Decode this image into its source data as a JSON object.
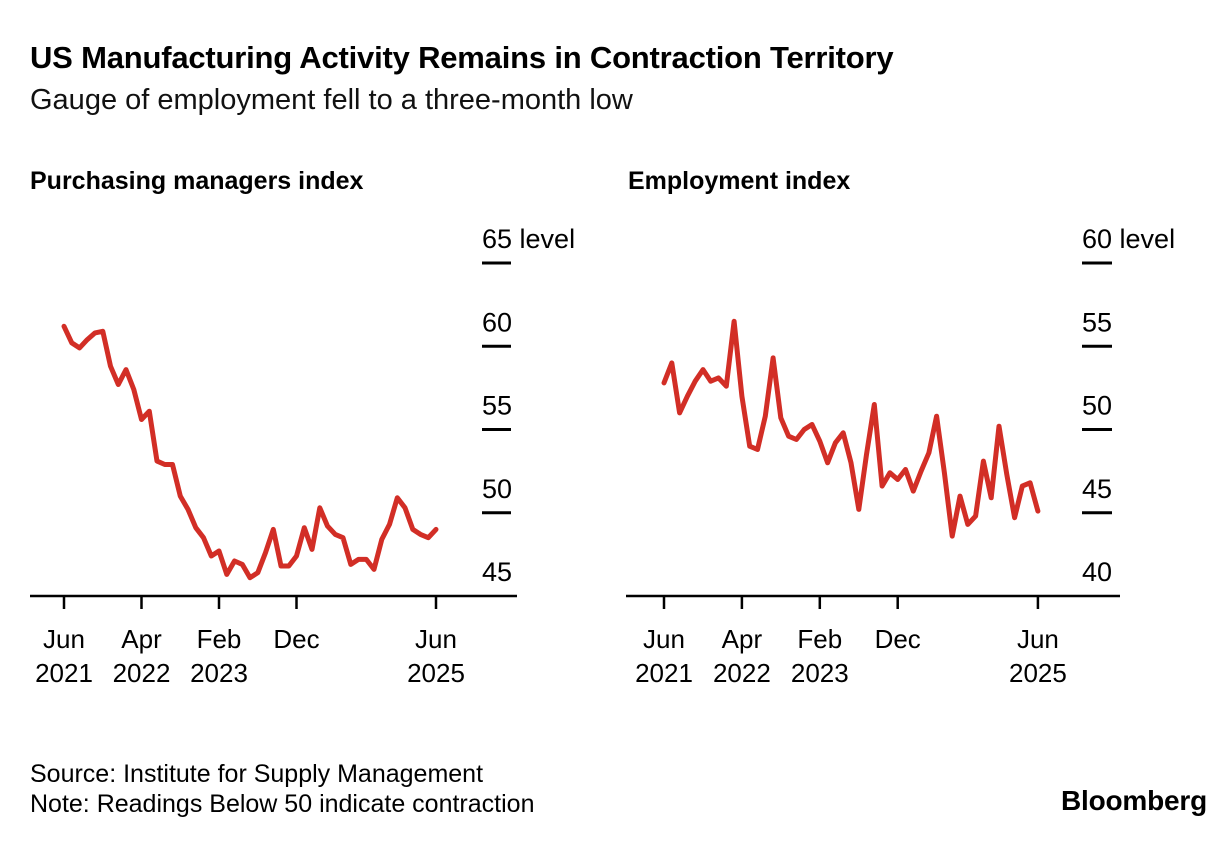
{
  "header": {
    "title": "US Manufacturing Activity Remains in Contraction Territory",
    "subtitle": "Gauge of employment fell to a three-month low"
  },
  "footer": {
    "source": "Source: Institute for Supply Management",
    "note": "Note: Readings Below 50 indicate contraction",
    "brand": "Bloomberg"
  },
  "colors": {
    "line": "#d22e26",
    "axis": "#000000",
    "text": "#000000"
  },
  "chart_data": [
    {
      "type": "line",
      "title": "Purchasing managers index",
      "ylabel_suffix": "level",
      "ylim": [
        45,
        65
      ],
      "yticks": [
        45,
        50,
        55,
        60,
        65
      ],
      "legend": "none",
      "grid": "off",
      "x": [
        "Jun 2021",
        "Jul 2021",
        "Aug 2021",
        "Sep 2021",
        "Oct 2021",
        "Nov 2021",
        "Dec 2021",
        "Jan 2022",
        "Feb 2022",
        "Mar 2022",
        "Apr 2022",
        "May 2022",
        "Jun 2022",
        "Jul 2022",
        "Aug 2022",
        "Sep 2022",
        "Oct 2022",
        "Nov 2022",
        "Dec 2022",
        "Jan 2023",
        "Feb 2023",
        "Mar 2023",
        "Apr 2023",
        "May 2023",
        "Jun 2023",
        "Jul 2023",
        "Aug 2023",
        "Sep 2023",
        "Oct 2023",
        "Nov 2023",
        "Dec 2023",
        "Jan 2024",
        "Feb 2024",
        "Mar 2024",
        "Apr 2024",
        "May 2024",
        "Jun 2024",
        "Jul 2024",
        "Aug 2024",
        "Sep 2024",
        "Oct 2024",
        "Nov 2024",
        "Dec 2024",
        "Jan 2025",
        "Feb 2025",
        "Mar 2025",
        "Apr 2025",
        "May 2025",
        "Jun 2025"
      ],
      "values": [
        61.2,
        60.2,
        59.9,
        60.4,
        60.8,
        60.9,
        58.8,
        57.7,
        58.6,
        57.4,
        55.6,
        56.1,
        53.1,
        52.9,
        52.9,
        51.0,
        50.2,
        49.1,
        48.5,
        47.4,
        47.7,
        46.3,
        47.1,
        46.9,
        46.1,
        46.4,
        47.6,
        49.0,
        46.8,
        46.8,
        47.4,
        49.1,
        47.8,
        50.3,
        49.2,
        48.7,
        48.5,
        46.9,
        47.2,
        47.2,
        46.6,
        48.4,
        49.3,
        50.9,
        50.3,
        49.0,
        48.7,
        48.5,
        49.0
      ],
      "xticks": [
        {
          "index": 0,
          "line1": "Jun",
          "line2": "2021"
        },
        {
          "index": 10,
          "line1": "Apr",
          "line2": "2022"
        },
        {
          "index": 20,
          "line1": "Feb",
          "line2": "2023"
        },
        {
          "index": 30,
          "line1": "Dec",
          "line2": ""
        },
        {
          "index": 48,
          "line1": "Jun",
          "line2": "2025"
        }
      ]
    },
    {
      "type": "line",
      "title": "Employment index",
      "ylabel_suffix": "level",
      "ylim": [
        40,
        60
      ],
      "yticks": [
        40,
        45,
        50,
        55,
        60
      ],
      "legend": "none",
      "grid": "off",
      "x": [
        "Jun 2021",
        "Jul 2021",
        "Aug 2021",
        "Sep 2021",
        "Oct 2021",
        "Nov 2021",
        "Dec 2021",
        "Jan 2022",
        "Feb 2022",
        "Mar 2022",
        "Apr 2022",
        "May 2022",
        "Jun 2022",
        "Jul 2022",
        "Aug 2022",
        "Sep 2022",
        "Oct 2022",
        "Nov 2022",
        "Dec 2022",
        "Jan 2023",
        "Feb 2023",
        "Mar 2023",
        "Apr 2023",
        "May 2023",
        "Jun 2023",
        "Jul 2023",
        "Aug 2023",
        "Sep 2023",
        "Oct 2023",
        "Nov 2023",
        "Dec 2023",
        "Jan 2024",
        "Feb 2024",
        "Mar 2024",
        "Apr 2024",
        "May 2024",
        "Jun 2024",
        "Jul 2024",
        "Aug 2024",
        "Sep 2024",
        "Oct 2024",
        "Nov 2024",
        "Dec 2024",
        "Jan 2025",
        "Feb 2025",
        "Mar 2025",
        "Apr 2025",
        "May 2025",
        "Jun 2025"
      ],
      "values": [
        52.8,
        54.0,
        51.0,
        52.0,
        52.9,
        53.6,
        52.9,
        53.1,
        52.6,
        56.5,
        52.0,
        49.0,
        48.8,
        50.8,
        54.3,
        50.7,
        49.6,
        49.4,
        50.0,
        50.3,
        49.3,
        48.0,
        49.2,
        49.8,
        48.0,
        45.2,
        48.5,
        51.5,
        46.6,
        47.4,
        47.0,
        47.6,
        46.3,
        47.5,
        48.6,
        50.8,
        47.4,
        43.6,
        46.0,
        44.3,
        44.8,
        48.1,
        45.9,
        50.2,
        47.3,
        44.7,
        46.6,
        46.8,
        45.1
      ],
      "xticks": [
        {
          "index": 0,
          "line1": "Jun",
          "line2": "2021"
        },
        {
          "index": 10,
          "line1": "Apr",
          "line2": "2022"
        },
        {
          "index": 20,
          "line1": "Feb",
          "line2": "2023"
        },
        {
          "index": 30,
          "line1": "Dec",
          "line2": ""
        },
        {
          "index": 48,
          "line1": "Jun",
          "line2": "2025"
        }
      ]
    }
  ]
}
